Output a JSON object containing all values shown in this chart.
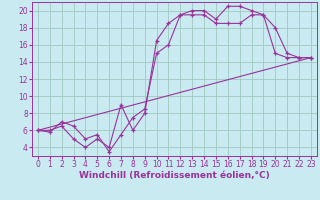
{
  "background_color": "#c8eaf0",
  "grid_color": "#a0c8c0",
  "line_color": "#993399",
  "marker": "+",
  "xlabel": "Windchill (Refroidissement éolien,°C)",
  "xlabel_fontsize": 6.5,
  "tick_fontsize": 5.5,
  "xlim": [
    -0.5,
    23.5
  ],
  "ylim": [
    3,
    21
  ],
  "yticks": [
    4,
    6,
    8,
    10,
    12,
    14,
    16,
    18,
    20
  ],
  "xticks": [
    0,
    1,
    2,
    3,
    4,
    5,
    6,
    7,
    8,
    9,
    10,
    11,
    12,
    13,
    14,
    15,
    16,
    17,
    18,
    19,
    20,
    21,
    22,
    23
  ],
  "series1_x": [
    0,
    1,
    2,
    3,
    4,
    5,
    6,
    7,
    8,
    9,
    10,
    11,
    12,
    13,
    14,
    15,
    16,
    17,
    18,
    19,
    20,
    21,
    22,
    23
  ],
  "series1_y": [
    6,
    6,
    6.5,
    5,
    4,
    5,
    4,
    9,
    6,
    8,
    16.5,
    18.5,
    19.5,
    19.5,
    19.5,
    18.5,
    18.5,
    18.5,
    19.5,
    19.5,
    18,
    15,
    14.5,
    14.5
  ],
  "series2_x": [
    0,
    1,
    2,
    3,
    4,
    5,
    6,
    7,
    8,
    9,
    10,
    11,
    12,
    13,
    14,
    15,
    16,
    17,
    18,
    19,
    20,
    21,
    22,
    23
  ],
  "series2_y": [
    6,
    5.8,
    7,
    6.5,
    5,
    5.5,
    3.5,
    5.5,
    7.5,
    8.5,
    15,
    16,
    19.5,
    20,
    20,
    19,
    20.5,
    20.5,
    20,
    19.5,
    15,
    14.5,
    14.5,
    14.5
  ],
  "series3_x": [
    0,
    23
  ],
  "series3_y": [
    6,
    14.5
  ]
}
